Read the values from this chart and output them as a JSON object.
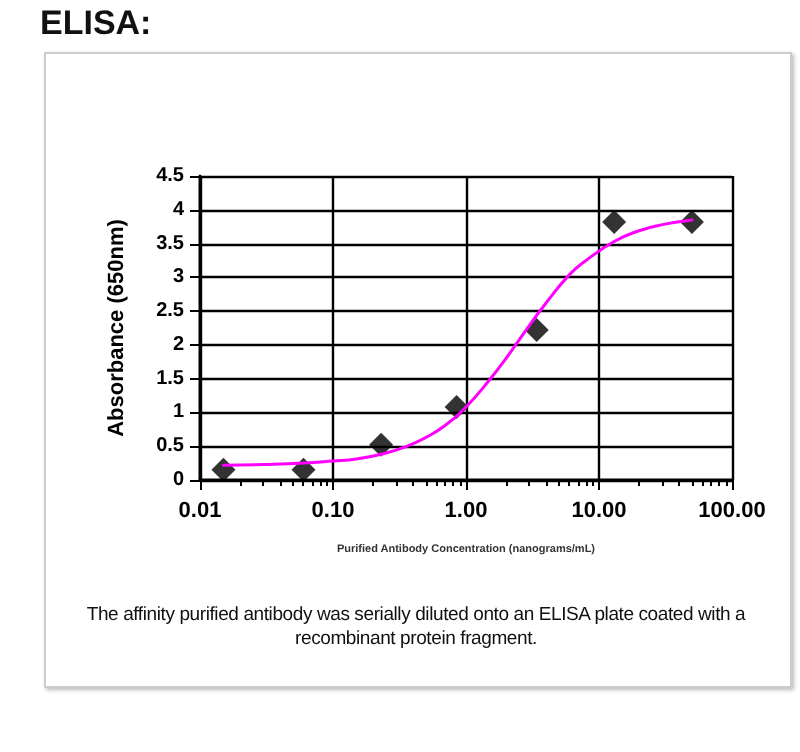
{
  "chart_data": {
    "type": "scatter",
    "title": "ELISA:",
    "xlabel": "Purified Antibody Concentration (nanograms/mL)",
    "ylabel": "Absorbance (650nm)",
    "annotations": [
      "The affinity purified antibody was serially diluted onto an ELISA plate coated with a recombinant protein fragment."
    ],
    "log": "x",
    "grid": true,
    "marker": "diamond",
    "xlim": [
      0.01,
      100
    ],
    "xticks": [
      {
        "value": 0.01,
        "label": "0.01"
      },
      {
        "value": 0.1,
        "label": "0.10"
      },
      {
        "value": 1,
        "label": "1.00"
      },
      {
        "value": 10,
        "label": "10.00"
      },
      {
        "value": 100,
        "label": "100.00"
      }
    ],
    "ylim": [
      0,
      4.5
    ],
    "yticks": [
      0,
      0.5,
      1,
      1.5,
      2,
      2.5,
      3,
      3.5,
      4,
      4.5
    ],
    "series": [
      {
        "color": "#000000",
        "x": [
          0.015,
          0.06,
          0.23,
          0.85,
          3.4,
          13,
          50
        ],
        "values": [
          0.15,
          0.15,
          0.52,
          1.08,
          2.22,
          3.82,
          3.82
        ]
      },
      {
        "type": "line",
        "color": "#ff00ff",
        "marker": "none",
        "line_style": "solid",
        "x": [
          0.015,
          0.03,
          0.06,
          0.1,
          0.15,
          0.23,
          0.35,
          0.5,
          0.7,
          1,
          1.5,
          2,
          3,
          4,
          6,
          8,
          13,
          20,
          30,
          50
        ],
        "values": [
          0.22,
          0.23,
          0.25,
          0.28,
          0.31,
          0.38,
          0.49,
          0.63,
          0.81,
          1.08,
          1.48,
          1.8,
          2.29,
          2.62,
          3.04,
          3.25,
          3.53,
          3.69,
          3.78,
          3.85
        ]
      }
    ]
  }
}
